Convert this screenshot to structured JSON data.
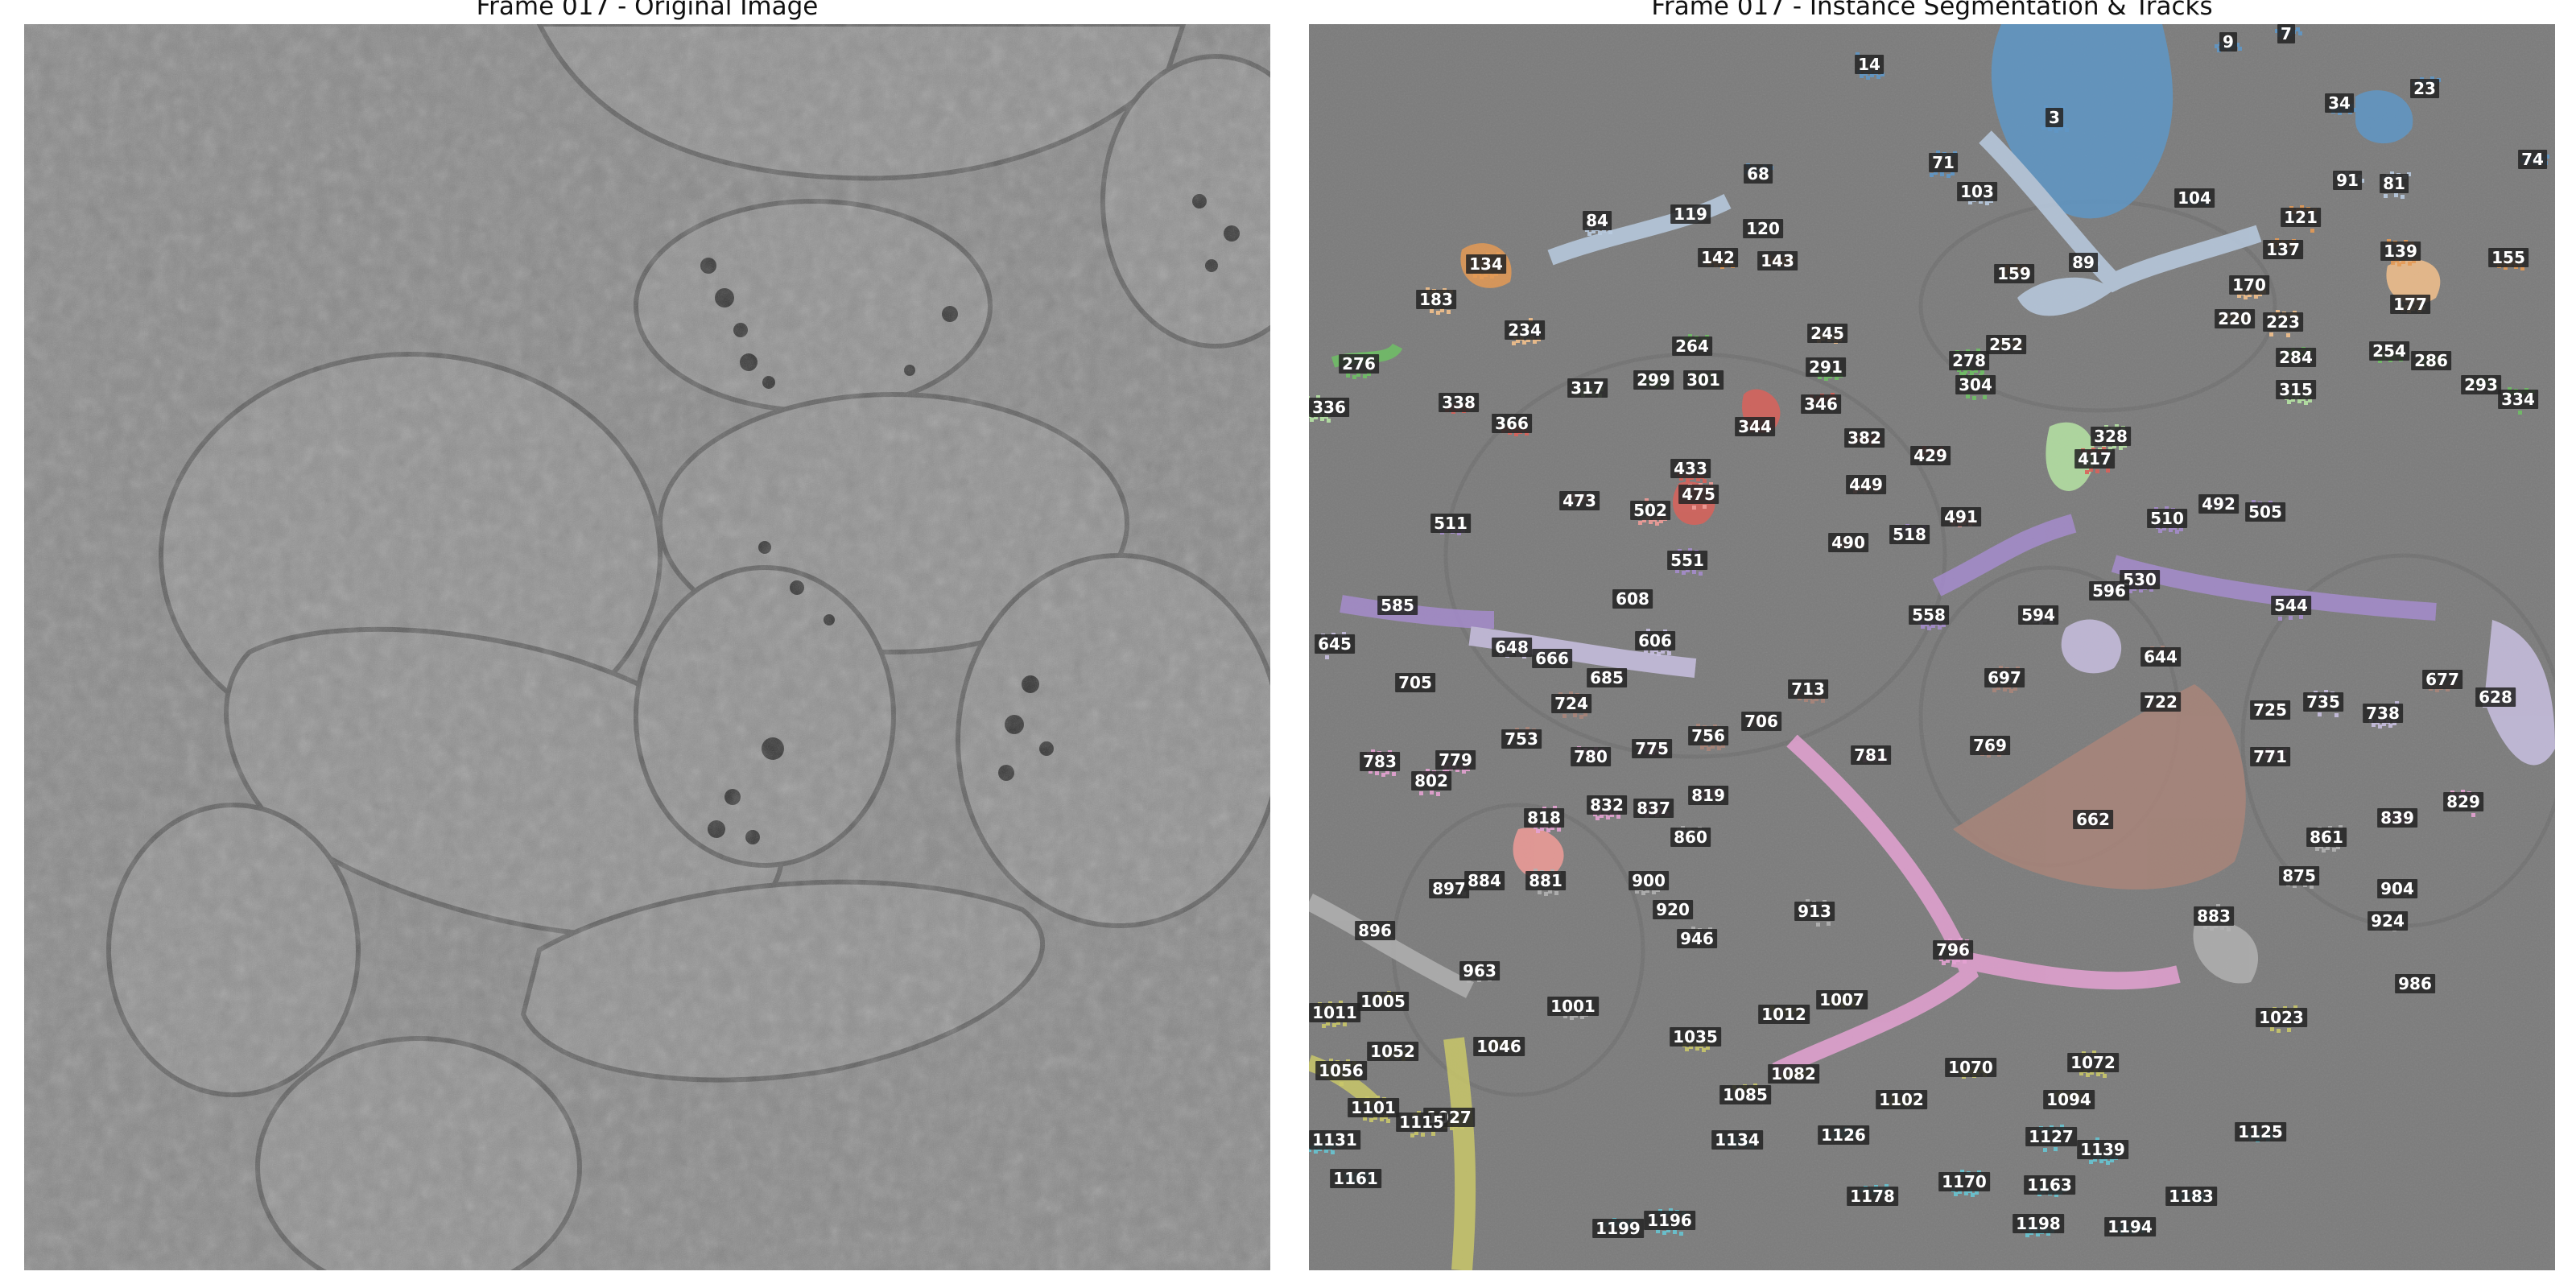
{
  "panels": {
    "left_title": "Frame 017 - Original Image",
    "right_title": "Frame 017 - Instance Segmentation & Tracks"
  },
  "colors": {
    "background_gray": "#7b7b7b",
    "blue": "#5f97c6",
    "light_blue": "#b9cbe0",
    "orange": "#e49a55",
    "peach": "#f2c08c",
    "green": "#6fbf65",
    "light_green": "#b6e3a4",
    "red": "#d9625a",
    "salmon": "#f09c98",
    "purple": "#a58ccc",
    "lavender": "#c8bfe0",
    "brown": "#a9857a",
    "pink": "#e4a2d2",
    "gray": "#b1b1b1",
    "olive": "#c9c76a",
    "teal": "#67c4d2"
  },
  "tracks": [
    {
      "id": "14",
      "color": "blue"
    },
    {
      "id": "9",
      "color": "blue"
    },
    {
      "id": "7",
      "color": "blue"
    },
    {
      "id": "23",
      "color": "blue"
    },
    {
      "id": "3",
      "color": "blue"
    },
    {
      "id": "34",
      "color": "blue"
    },
    {
      "id": "74",
      "color": "blue"
    },
    {
      "id": "68",
      "color": "blue"
    },
    {
      "id": "71",
      "color": "blue"
    },
    {
      "id": "103",
      "color": "light_blue"
    },
    {
      "id": "104",
      "color": "blue"
    },
    {
      "id": "91",
      "color": "light_blue"
    },
    {
      "id": "81",
      "color": "light_blue"
    },
    {
      "id": "84",
      "color": "light_blue"
    },
    {
      "id": "119",
      "color": "light_blue"
    },
    {
      "id": "120",
      "color": "light_blue"
    },
    {
      "id": "121",
      "color": "orange"
    },
    {
      "id": "134",
      "color": "orange"
    },
    {
      "id": "142",
      "color": "orange"
    },
    {
      "id": "143",
      "color": "orange"
    },
    {
      "id": "137",
      "color": "orange"
    },
    {
      "id": "139",
      "color": "orange"
    },
    {
      "id": "155",
      "color": "orange"
    },
    {
      "id": "89",
      "color": "light_blue"
    },
    {
      "id": "159",
      "color": "orange"
    },
    {
      "id": "183",
      "color": "peach"
    },
    {
      "id": "170",
      "color": "peach"
    },
    {
      "id": "177",
      "color": "peach"
    },
    {
      "id": "220",
      "color": "peach"
    },
    {
      "id": "223",
      "color": "peach"
    },
    {
      "id": "234",
      "color": "peach"
    },
    {
      "id": "245",
      "color": "peach"
    },
    {
      "id": "252",
      "color": "peach"
    },
    {
      "id": "264",
      "color": "green"
    },
    {
      "id": "278",
      "color": "green"
    },
    {
      "id": "254",
      "color": "green"
    },
    {
      "id": "286",
      "color": "green"
    },
    {
      "id": "284",
      "color": "green"
    },
    {
      "id": "276",
      "color": "green"
    },
    {
      "id": "291",
      "color": "green"
    },
    {
      "id": "299",
      "color": "green"
    },
    {
      "id": "301",
      "color": "green"
    },
    {
      "id": "304",
      "color": "green"
    },
    {
      "id": "315",
      "color": "light_green"
    },
    {
      "id": "317",
      "color": "light_green"
    },
    {
      "id": "293",
      "color": "green"
    },
    {
      "id": "334",
      "color": "green"
    },
    {
      "id": "336",
      "color": "light_green"
    },
    {
      "id": "338",
      "color": "red"
    },
    {
      "id": "344",
      "color": "red"
    },
    {
      "id": "346",
      "color": "red"
    },
    {
      "id": "328",
      "color": "light_green"
    },
    {
      "id": "366",
      "color": "red"
    },
    {
      "id": "382",
      "color": "red"
    },
    {
      "id": "429",
      "color": "red"
    },
    {
      "id": "417",
      "color": "red"
    },
    {
      "id": "433",
      "color": "red"
    },
    {
      "id": "449",
      "color": "salmon"
    },
    {
      "id": "473",
      "color": "salmon"
    },
    {
      "id": "475",
      "color": "salmon"
    },
    {
      "id": "502",
      "color": "salmon"
    },
    {
      "id": "491",
      "color": "salmon"
    },
    {
      "id": "492",
      "color": "purple"
    },
    {
      "id": "505",
      "color": "purple"
    },
    {
      "id": "510",
      "color": "purple"
    },
    {
      "id": "511",
      "color": "purple"
    },
    {
      "id": "490",
      "color": "salmon"
    },
    {
      "id": "518",
      "color": "purple"
    },
    {
      "id": "551",
      "color": "purple"
    },
    {
      "id": "530",
      "color": "purple"
    },
    {
      "id": "585",
      "color": "purple"
    },
    {
      "id": "596",
      "color": "lavender"
    },
    {
      "id": "544",
      "color": "purple"
    },
    {
      "id": "558",
      "color": "purple"
    },
    {
      "id": "594",
      "color": "lavender"
    },
    {
      "id": "608",
      "color": "lavender"
    },
    {
      "id": "645",
      "color": "lavender"
    },
    {
      "id": "606",
      "color": "lavender"
    },
    {
      "id": "648",
      "color": "lavender"
    },
    {
      "id": "666",
      "color": "lavender"
    },
    {
      "id": "644",
      "color": "brown"
    },
    {
      "id": "697",
      "color": "brown"
    },
    {
      "id": "677",
      "color": "brown"
    },
    {
      "id": "705",
      "color": "brown"
    },
    {
      "id": "685",
      "color": "brown"
    },
    {
      "id": "724",
      "color": "brown"
    },
    {
      "id": "713",
      "color": "brown"
    },
    {
      "id": "722",
      "color": "brown"
    },
    {
      "id": "725",
      "color": "brown"
    },
    {
      "id": "735",
      "color": "lavender"
    },
    {
      "id": "738",
      "color": "lavender"
    },
    {
      "id": "628",
      "color": "lavender"
    },
    {
      "id": "706",
      "color": "brown"
    },
    {
      "id": "753",
      "color": "brown"
    },
    {
      "id": "756",
      "color": "brown"
    },
    {
      "id": "769",
      "color": "brown"
    },
    {
      "id": "775",
      "color": "pink"
    },
    {
      "id": "780",
      "color": "pink"
    },
    {
      "id": "783",
      "color": "pink"
    },
    {
      "id": "779",
      "color": "pink"
    },
    {
      "id": "781",
      "color": "pink"
    },
    {
      "id": "771",
      "color": "pink"
    },
    {
      "id": "802",
      "color": "pink"
    },
    {
      "id": "832",
      "color": "pink"
    },
    {
      "id": "837",
      "color": "pink"
    },
    {
      "id": "819",
      "color": "pink"
    },
    {
      "id": "829",
      "color": "pink"
    },
    {
      "id": "818",
      "color": "pink"
    },
    {
      "id": "662",
      "color": "brown"
    },
    {
      "id": "839",
      "color": "pink"
    },
    {
      "id": "860",
      "color": "gray"
    },
    {
      "id": "861",
      "color": "gray"
    },
    {
      "id": "875",
      "color": "gray"
    },
    {
      "id": "897",
      "color": "gray"
    },
    {
      "id": "884",
      "color": "gray"
    },
    {
      "id": "881",
      "color": "gray"
    },
    {
      "id": "900",
      "color": "gray"
    },
    {
      "id": "904",
      "color": "gray"
    },
    {
      "id": "920",
      "color": "gray"
    },
    {
      "id": "913",
      "color": "gray"
    },
    {
      "id": "883",
      "color": "gray"
    },
    {
      "id": "924",
      "color": "gray"
    },
    {
      "id": "896",
      "color": "gray"
    },
    {
      "id": "946",
      "color": "gray"
    },
    {
      "id": "796",
      "color": "pink"
    },
    {
      "id": "963",
      "color": "gray"
    },
    {
      "id": "986",
      "color": "gray"
    },
    {
      "id": "1005",
      "color": "olive"
    },
    {
      "id": "1011",
      "color": "olive"
    },
    {
      "id": "1001",
      "color": "gray"
    },
    {
      "id": "1007",
      "color": "olive"
    },
    {
      "id": "1012",
      "color": "olive"
    },
    {
      "id": "1023",
      "color": "olive"
    },
    {
      "id": "1035",
      "color": "olive"
    },
    {
      "id": "1052",
      "color": "olive"
    },
    {
      "id": "1046",
      "color": "olive"
    },
    {
      "id": "1056",
      "color": "olive"
    },
    {
      "id": "1072",
      "color": "olive"
    },
    {
      "id": "1070",
      "color": "olive"
    },
    {
      "id": "1082",
      "color": "olive"
    },
    {
      "id": "1085",
      "color": "olive"
    },
    {
      "id": "1101",
      "color": "olive"
    },
    {
      "id": "1027",
      "color": "olive"
    },
    {
      "id": "1102",
      "color": "olive"
    },
    {
      "id": "1094",
      "color": "olive"
    },
    {
      "id": "1115",
      "color": "olive"
    },
    {
      "id": "1131",
      "color": "teal"
    },
    {
      "id": "1134",
      "color": "teal"
    },
    {
      "id": "1126",
      "color": "teal"
    },
    {
      "id": "1127",
      "color": "teal"
    },
    {
      "id": "1139",
      "color": "teal"
    },
    {
      "id": "1125",
      "color": "teal"
    },
    {
      "id": "1161",
      "color": "teal"
    },
    {
      "id": "1178",
      "color": "teal"
    },
    {
      "id": "1170",
      "color": "teal"
    },
    {
      "id": "1163",
      "color": "teal"
    },
    {
      "id": "1183",
      "color": "teal"
    },
    {
      "id": "1199",
      "color": "teal"
    },
    {
      "id": "1196",
      "color": "teal"
    },
    {
      "id": "1198",
      "color": "teal"
    },
    {
      "id": "1194",
      "color": "teal"
    }
  ]
}
